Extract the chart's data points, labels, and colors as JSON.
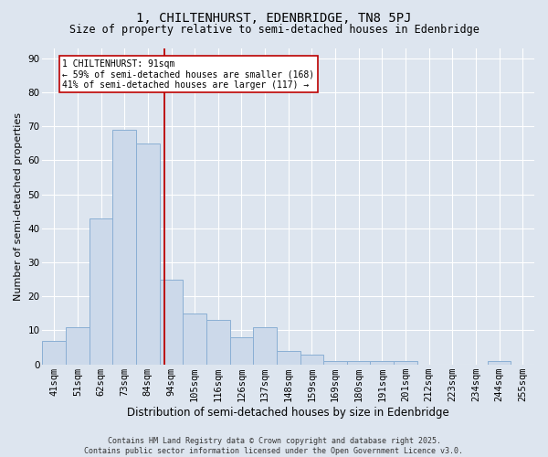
{
  "title": "1, CHILTENHURST, EDENBRIDGE, TN8 5PJ",
  "subtitle": "Size of property relative to semi-detached houses in Edenbridge",
  "xlabel": "Distribution of semi-detached houses by size in Edenbridge",
  "ylabel": "Number of semi-detached properties",
  "categories": [
    "41sqm",
    "51sqm",
    "62sqm",
    "73sqm",
    "84sqm",
    "94sqm",
    "105sqm",
    "116sqm",
    "126sqm",
    "137sqm",
    "148sqm",
    "159sqm",
    "169sqm",
    "180sqm",
    "191sqm",
    "201sqm",
    "212sqm",
    "223sqm",
    "234sqm",
    "244sqm",
    "255sqm"
  ],
  "bar_heights": [
    7,
    11,
    43,
    69,
    65,
    25,
    15,
    13,
    8,
    11,
    4,
    3,
    1,
    1,
    1,
    1,
    0,
    0,
    0,
    1,
    0
  ],
  "bar_color": "#ccd9ea",
  "bar_edge_color": "#8aafd4",
  "background_color": "#dde5ef",
  "grid_color": "#ffffff",
  "vline_color": "#bb0000",
  "annotation_text": "1 CHILTENHURST: 91sqm\n← 59% of semi-detached houses are smaller (168)\n41% of semi-detached houses are larger (117) →",
  "annotation_box_color": "#ffffff",
  "annotation_box_edge_color": "#bb0000",
  "footer_text": "Contains HM Land Registry data © Crown copyright and database right 2025.\nContains public sector information licensed under the Open Government Licence v3.0.",
  "ylim": [
    0,
    93
  ],
  "yticks": [
    0,
    10,
    20,
    30,
    40,
    50,
    60,
    70,
    80,
    90
  ],
  "title_fontsize": 10,
  "subtitle_fontsize": 8.5,
  "ylabel_fontsize": 8,
  "xlabel_fontsize": 8.5,
  "tick_fontsize": 7.5,
  "footer_fontsize": 6,
  "ann_fontsize": 7
}
